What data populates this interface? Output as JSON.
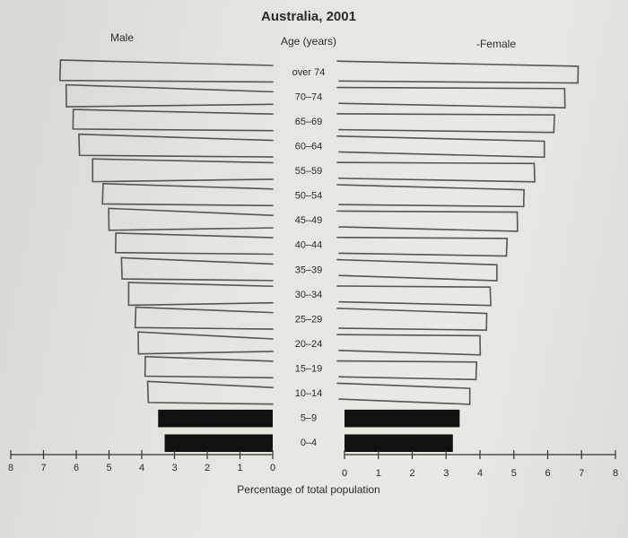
{
  "chart_data": {
    "type": "bar",
    "title": "Australia, 2001",
    "center_label": "Age (years)",
    "left_label": "Male",
    "right_label": "-Female",
    "xlabel": "Percentage of total population",
    "left_ticks": [
      "8",
      "7",
      "6",
      "5",
      "4",
      "3",
      "2",
      "1",
      "0"
    ],
    "right_ticks": [
      "0",
      "1",
      "2",
      "3",
      "4",
      "5",
      "6",
      "7",
      "8"
    ],
    "xlim": [
      0,
      8
    ],
    "categories": [
      "over 74",
      "70–74",
      "65–69",
      "60–64",
      "55–59",
      "50–54",
      "45–49",
      "40–44",
      "35–39",
      "30–34",
      "25–29",
      "20–24",
      "15–19",
      "10–14",
      "5–9",
      "0–4"
    ],
    "series": [
      {
        "name": "Male",
        "values": [
          6.5,
          6.3,
          6.1,
          5.9,
          5.5,
          5.2,
          5.0,
          4.8,
          4.6,
          4.4,
          4.2,
          4.1,
          3.9,
          3.8,
          3.5,
          3.3
        ]
      },
      {
        "name": "Female",
        "values": [
          6.9,
          6.5,
          6.2,
          5.9,
          5.6,
          5.3,
          5.1,
          4.8,
          4.5,
          4.3,
          4.2,
          4.0,
          3.9,
          3.7,
          3.4,
          3.2
        ]
      }
    ],
    "drawn_by_hand_rows": 14,
    "printed_rows": 2
  }
}
